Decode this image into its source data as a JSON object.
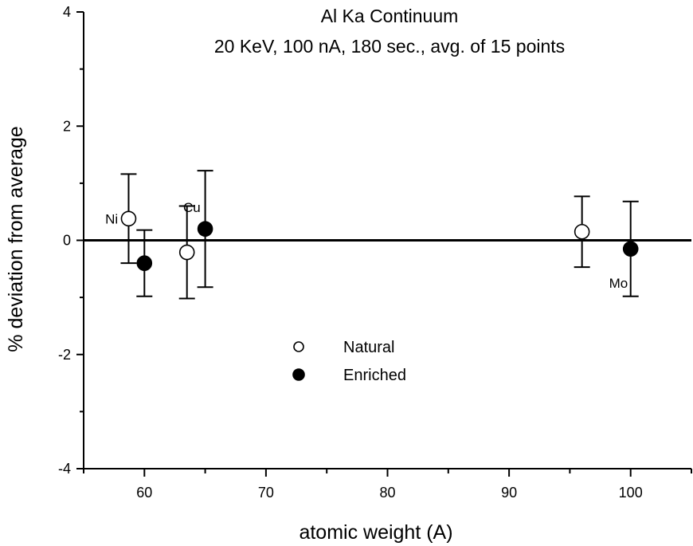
{
  "chart_data": {
    "type": "scatter",
    "title": "Al Ka Continuum",
    "subtitle": "20 KeV, 100 nA, 180 sec., avg. of 15 points",
    "xlabel": "atomic weight (A)",
    "ylabel": "% deviation from average",
    "xlim": [
      55,
      105
    ],
    "ylim": [
      -4,
      4
    ],
    "x_ticks": [
      60,
      70,
      80,
      90,
      100
    ],
    "y_ticks": [
      -4,
      -2,
      0,
      2,
      4
    ],
    "x_tick_labels": [
      "60",
      "70",
      "80",
      "90",
      "100"
    ],
    "y_tick_labels": [
      "-4",
      "-2",
      "0",
      "2",
      "4"
    ],
    "reference_line_y": 0,
    "grid": false,
    "legend_position": "center",
    "series": [
      {
        "name": "Natural",
        "marker": "open-circle",
        "color": "#000000",
        "points": [
          {
            "x": 58.7,
            "y": 0.38,
            "err": 0.78
          },
          {
            "x": 63.5,
            "y": -0.21,
            "err": 0.81
          },
          {
            "x": 96.0,
            "y": 0.15,
            "err": 0.62
          }
        ]
      },
      {
        "name": "Enriched",
        "marker": "filled-circle",
        "color": "#000000",
        "points": [
          {
            "x": 60.0,
            "y": -0.4,
            "err": 0.58
          },
          {
            "x": 65.0,
            "y": 0.2,
            "err": 1.02
          },
          {
            "x": 100.0,
            "y": -0.15,
            "err": 0.83
          }
        ]
      }
    ],
    "annotations": [
      {
        "text": "Ni",
        "x": 57.3,
        "y": 0.38
      },
      {
        "text": "Cu",
        "x": 63.9,
        "y": 0.58
      },
      {
        "text": "Mo",
        "x": 99.0,
        "y": -0.75
      }
    ]
  }
}
